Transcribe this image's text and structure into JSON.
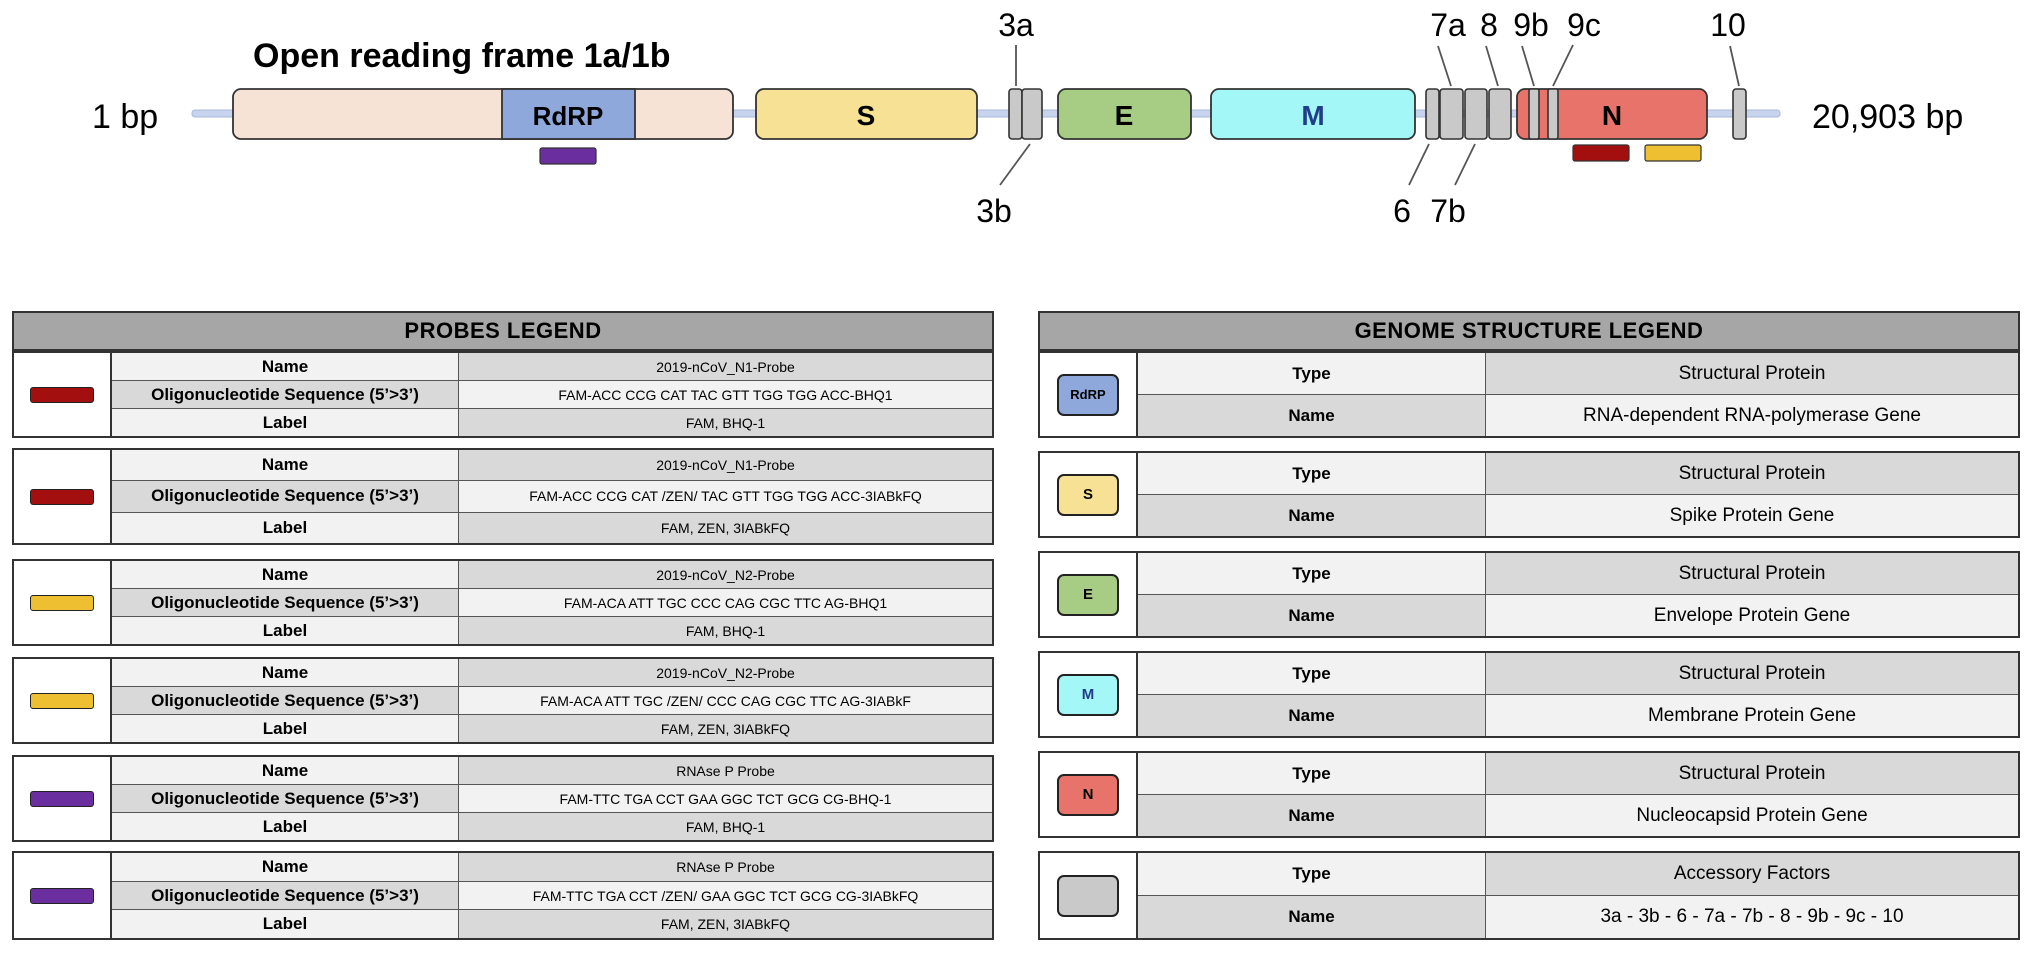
{
  "genome": {
    "title": "Open reading frame 1a/1b",
    "start_label": "1 bp",
    "end_label": "20,903 bp",
    "genes": {
      "RdRP": "RdRP",
      "S": "S",
      "E": "E",
      "M": "M",
      "N": "N"
    },
    "accessory_labels": {
      "a3a": "3a",
      "a3b": "3b",
      "a6": "6",
      "a7a": "7a",
      "a7b": "7b",
      "a8": "8",
      "a9b": "9b",
      "a9c": "9c",
      "a10": "10"
    }
  },
  "colors": {
    "orf": "#f6e3d6",
    "rdrp": "#8fa8dc",
    "s": "#f7e194",
    "e": "#a7cc84",
    "m": "#a3f7f7",
    "n": "#e8736b",
    "accessory": "#c9c9c9",
    "probe_n1": "#a30f0f",
    "probe_n2": "#eebf30",
    "probe_rnase": "#6a2e9e",
    "backbone": "#c8d4ee"
  },
  "probes_legend": {
    "header": "PROBES LEGEND",
    "keys": {
      "name": "Name",
      "sequence": "Oligonucleotide Sequence (5’>3’)",
      "label": "Label"
    },
    "entries": [
      {
        "color": "#a30f0f",
        "name": "2019-nCoV_N1-Probe",
        "sequence": "FAM-ACC CCG CAT TAC GTT TGG TGG ACC-BHQ1",
        "label": "FAM, BHQ-1"
      },
      {
        "color": "#a30f0f",
        "name": "2019-nCoV_N1-Probe",
        "sequence": "FAM-ACC CCG CAT /ZEN/ TAC GTT TGG TGG ACC-3IABkFQ",
        "label": "FAM, ZEN, 3IABkFQ"
      },
      {
        "color": "#eebf30",
        "name": "2019-nCoV_N2-Probe",
        "sequence": "FAM-ACA ATT TGC CCC CAG CGC TTC AG-BHQ1",
        "label": "FAM, BHQ-1"
      },
      {
        "color": "#eebf30",
        "name": "2019-nCoV_N2-Probe",
        "sequence": "FAM-ACA ATT TGC /ZEN/ CCC CAG CGC TTC AG-3IABkF",
        "label": "FAM, ZEN, 3IABkFQ"
      },
      {
        "color": "#6a2e9e",
        "name": "RNAse P Probe",
        "sequence": "FAM-TTC TGA CCT GAA GGC TCT GCG CG-BHQ-1",
        "label": "FAM, BHQ-1"
      },
      {
        "color": "#6a2e9e",
        "name": "RNAse P Probe",
        "sequence": "FAM-TTC TGA CCT /ZEN/ GAA GGC TCT GCG CG-3IABkFQ",
        "label": "FAM, ZEN, 3IABkFQ"
      }
    ]
  },
  "genome_legend": {
    "header": "GENOME STRUCTURE LEGEND",
    "keys": {
      "type": "Type",
      "name": "Name"
    },
    "entries": [
      {
        "swatch": "RdRP",
        "color": "#8fa8dc",
        "type": "Structural Protein",
        "name": "RNA-dependent RNA-polymerase Gene"
      },
      {
        "swatch": "S",
        "color": "#f7e194",
        "type": "Structural Protein",
        "name": "Spike Protein Gene"
      },
      {
        "swatch": "E",
        "color": "#a7cc84",
        "type": "Structural Protein",
        "name": "Envelope Protein Gene"
      },
      {
        "swatch": "M",
        "color": "#a3f7f7",
        "type": "Structural Protein",
        "name": "Membrane Protein Gene"
      },
      {
        "swatch": "N",
        "color": "#e8736b",
        "type": "Structural Protein",
        "name": "Nucleocapsid Protein Gene"
      },
      {
        "swatch": "",
        "color": "#c9c9c9",
        "type": "Accessory Factors",
        "name": "3a - 3b - 6 - 7a - 7b - 8 - 9b - 9c - 10"
      }
    ]
  }
}
